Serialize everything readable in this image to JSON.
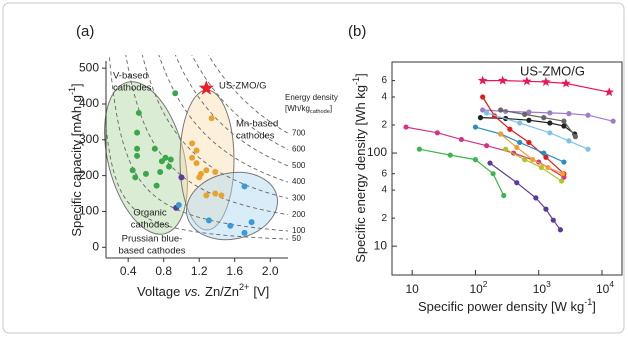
{
  "chart_data": [
    {
      "type": "scatter",
      "panel_label": "(a)",
      "x_label": {
        "text": "Voltage",
        "italic": "vs.",
        "ion": "Zn/Zn",
        "sup": "2+",
        "unit": "[V]"
      },
      "y_label": {
        "text": "Specific capacity [mAh g",
        "sup": "-1",
        "end": "]"
      },
      "xlim": [
        0.15,
        2.2
      ],
      "ylim": [
        -30,
        520
      ],
      "xticks": [
        {
          "value": 0.4,
          "label": "0.4"
        },
        {
          "value": 0.8,
          "label": "0.8"
        },
        {
          "value": 1.2,
          "label": "1.2"
        },
        {
          "value": 1.6,
          "label": "1.6"
        },
        {
          "value": 2.0,
          "label": "2.0"
        }
      ],
      "yticks": [
        0,
        100,
        200,
        300,
        400,
        500
      ],
      "energy_density": {
        "title": "Energy density",
        "unit": "[Wh/kg",
        "unit_sub": "cathode",
        "unit_end": "]",
        "levels": [
          700,
          600,
          500,
          400,
          300,
          200,
          100,
          50
        ]
      },
      "series": [
        {
          "name": [
            "V-based",
            "cathodes"
          ],
          "color": "#3aa84a",
          "marker": "circle",
          "x": [
            0.93,
            0.52,
            0.5,
            0.5,
            0.5,
            0.7,
            0.78,
            0.82,
            0.86,
            0.88,
            0.76,
            0.6,
            0.72,
            0.45,
            0.48
          ],
          "y": [
            430,
            375,
            320,
            275,
            255,
            275,
            240,
            250,
            225,
            245,
            210,
            205,
            172,
            215,
            195
          ]
        },
        {
          "name": [
            "Mn-based",
            "cathodes"
          ],
          "color": "#e8a32e",
          "marker": "circle",
          "x": [
            1.34,
            1.12,
            1.17,
            1.12,
            1.17,
            1.28,
            1.22,
            1.38,
            1.28,
            1.38,
            1.45,
            1.2
          ],
          "y": [
            360,
            290,
            270,
            250,
            235,
            215,
            205,
            210,
            145,
            150,
            145,
            195
          ]
        },
        {
          "name": [
            "Organic",
            "cathodes"
          ],
          "color": "#5b3a9b",
          "marker": "circle",
          "x": [
            1.0,
            0.94
          ],
          "y": [
            195,
            110
          ]
        },
        {
          "name": [
            "Prussian blue-",
            "based cathodes"
          ],
          "color": "#3a9ad9",
          "marker": "circle",
          "x": [
            0.97,
            1.31,
            1.71,
            1.55,
            1.71,
            1.79
          ],
          "y": [
            118,
            75,
            170,
            60,
            40,
            70
          ]
        },
        {
          "name": [
            "US-ZMO/G"
          ],
          "color": "#e8202a",
          "marker": "star",
          "x": [
            1.28
          ],
          "y": [
            444
          ]
        }
      ]
    },
    {
      "type": "line",
      "panel_label": "(b)",
      "log_x": true,
      "log_y": true,
      "x_label": {
        "text": "Specific power density [W kg",
        "sup": "-1",
        "end": "]"
      },
      "y_label": {
        "text": "Specific energy density [Wh kg",
        "sup": "-1",
        "end": "]"
      },
      "xlim": [
        4.8,
        20700
      ],
      "ylim": [
        4.9,
        950
      ],
      "xticks": [
        10,
        {
          "value": 100,
          "label": "10",
          "exponent": "2"
        },
        {
          "value": 1000,
          "label": "10",
          "exponent": "3"
        },
        {
          "value": 10000,
          "label": "10",
          "exponent": "4"
        }
      ],
      "yticks": [
        10,
        {
          "value": 20,
          "label": "2"
        },
        {
          "value": 40,
          "label": "4"
        },
        {
          "value": 60,
          "label": "6"
        },
        100,
        {
          "value": 200,
          "label": "2"
        },
        {
          "value": 400,
          "label": "4"
        },
        {
          "value": 600,
          "label": "6"
        }
      ],
      "series": [
        {
          "name": "US-ZMO/G",
          "color": "#e8175d",
          "marker": "star",
          "x": [
            130,
            270,
            650,
            1300,
            2700,
            13000
          ],
          "y": [
            600,
            600,
            590,
            580,
            560,
            450
          ]
        },
        {
          "color": "#3cb54a",
          "marker": "circle",
          "x": [
            13,
            40,
            100,
            190,
            280
          ],
          "y": [
            110,
            95,
            85,
            60,
            35
          ]
        },
        {
          "color": "#5b3a9b",
          "marker": "circle",
          "x": [
            170,
            450,
            900,
            1300,
            1700,
            2200
          ],
          "y": [
            78,
            48,
            33,
            25,
            19,
            15
          ]
        },
        {
          "color": "#a07cc8",
          "marker": "circle",
          "x": [
            130,
            300,
            700,
            1500,
            3000,
            6000,
            15000
          ],
          "y": [
            290,
            280,
            275,
            270,
            265,
            255,
            220
          ]
        },
        {
          "color": "#222222",
          "marker": "circle",
          "x": [
            120,
            300,
            700,
            1500,
            2500,
            3700
          ],
          "y": [
            240,
            235,
            225,
            210,
            195,
            160
          ]
        },
        {
          "color": "#666666",
          "marker": "circle",
          "x": [
            250,
            600,
            1200,
            2500,
            3800
          ],
          "y": [
            290,
            260,
            240,
            220,
            150
          ]
        },
        {
          "color": "#d63384",
          "marker": "circle",
          "x": [
            8,
            25,
            60,
            150,
            400,
            1000,
            2500
          ],
          "y": [
            190,
            165,
            140,
            120,
            100,
            80,
            55
          ]
        },
        {
          "color": "#e41a1c",
          "marker": "circle",
          "x": [
            130,
            200,
            350,
            700,
            1300,
            2500
          ],
          "y": [
            400,
            250,
            180,
            130,
            90,
            60
          ]
        },
        {
          "color": "#7ec3e6",
          "marker": "circle",
          "x": [
            150,
            500,
            1500,
            3000,
            6000
          ],
          "y": [
            270,
            210,
            165,
            135,
            110
          ]
        },
        {
          "color": "#2b8cbe",
          "marker": "circle",
          "x": [
            100,
            250,
            500,
            1200,
            2500
          ],
          "y": [
            190,
            160,
            130,
            100,
            80
          ]
        },
        {
          "color": "#f0a030",
          "marker": "circle",
          "x": [
            250,
            450,
            800,
            1400,
            2400
          ],
          "y": [
            160,
            115,
            85,
            70,
            60
          ]
        },
        {
          "color": "#b5c225",
          "marker": "circle",
          "x": [
            300,
            600,
            1100,
            2300
          ],
          "y": [
            110,
            85,
            70,
            50
          ]
        }
      ]
    }
  ]
}
